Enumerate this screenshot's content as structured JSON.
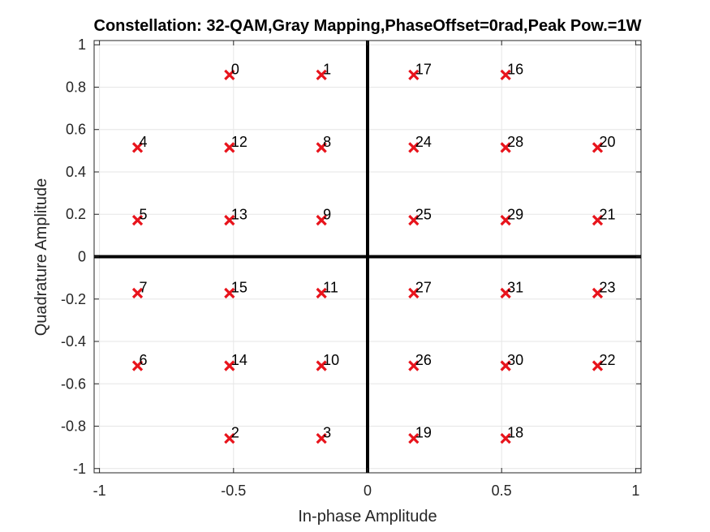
{
  "chart_data": {
    "type": "scatter",
    "title": "Constellation: 32-QAM,Gray Mapping,PhaseOffset=0rad,Peak Pow.=1W",
    "xlabel": "In-phase Amplitude",
    "ylabel": "Quadrature Amplitude",
    "xlim": [
      -1.02,
      1.02
    ],
    "ylim": [
      -1.02,
      1.02
    ],
    "xticks": [
      -1,
      -0.5,
      0,
      0.5,
      1
    ],
    "xtick_labels": [
      "-1",
      "-0.5",
      "0",
      "0.5",
      "1"
    ],
    "yticks": [
      -1,
      -0.8,
      -0.6,
      -0.4,
      -0.2,
      0,
      0.2,
      0.4,
      0.6,
      0.8,
      1
    ],
    "ytick_labels": [
      "-1",
      "-0.8",
      "-0.6",
      "-0.4",
      "-0.2",
      "0",
      "0.2",
      "0.4",
      "0.6",
      "0.8",
      "1"
    ],
    "grid": true,
    "marker": "x",
    "marker_color": "#e8141c",
    "axis_line_color": "#000000",
    "points": [
      {
        "label": "0",
        "x": -0.515,
        "y": 0.858
      },
      {
        "label": "1",
        "x": -0.172,
        "y": 0.858
      },
      {
        "label": "17",
        "x": 0.172,
        "y": 0.858
      },
      {
        "label": "16",
        "x": 0.515,
        "y": 0.858
      },
      {
        "label": "4",
        "x": -0.858,
        "y": 0.515
      },
      {
        "label": "12",
        "x": -0.515,
        "y": 0.515
      },
      {
        "label": "8",
        "x": -0.172,
        "y": 0.515
      },
      {
        "label": "24",
        "x": 0.172,
        "y": 0.515
      },
      {
        "label": "28",
        "x": 0.515,
        "y": 0.515
      },
      {
        "label": "20",
        "x": 0.858,
        "y": 0.515
      },
      {
        "label": "5",
        "x": -0.858,
        "y": 0.172
      },
      {
        "label": "13",
        "x": -0.515,
        "y": 0.172
      },
      {
        "label": "9",
        "x": -0.172,
        "y": 0.172
      },
      {
        "label": "25",
        "x": 0.172,
        "y": 0.172
      },
      {
        "label": "29",
        "x": 0.515,
        "y": 0.172
      },
      {
        "label": "21",
        "x": 0.858,
        "y": 0.172
      },
      {
        "label": "7",
        "x": -0.858,
        "y": -0.172
      },
      {
        "label": "15",
        "x": -0.515,
        "y": -0.172
      },
      {
        "label": "11",
        "x": -0.172,
        "y": -0.172
      },
      {
        "label": "27",
        "x": 0.172,
        "y": -0.172
      },
      {
        "label": "31",
        "x": 0.515,
        "y": -0.172
      },
      {
        "label": "23",
        "x": 0.858,
        "y": -0.172
      },
      {
        "label": "6",
        "x": -0.858,
        "y": -0.515
      },
      {
        "label": "14",
        "x": -0.515,
        "y": -0.515
      },
      {
        "label": "10",
        "x": -0.172,
        "y": -0.515
      },
      {
        "label": "26",
        "x": 0.172,
        "y": -0.515
      },
      {
        "label": "30",
        "x": 0.515,
        "y": -0.515
      },
      {
        "label": "22",
        "x": 0.858,
        "y": -0.515
      },
      {
        "label": "2",
        "x": -0.515,
        "y": -0.858
      },
      {
        "label": "3",
        "x": -0.172,
        "y": -0.858
      },
      {
        "label": "19",
        "x": 0.172,
        "y": -0.858
      },
      {
        "label": "18",
        "x": 0.515,
        "y": -0.858
      }
    ]
  }
}
